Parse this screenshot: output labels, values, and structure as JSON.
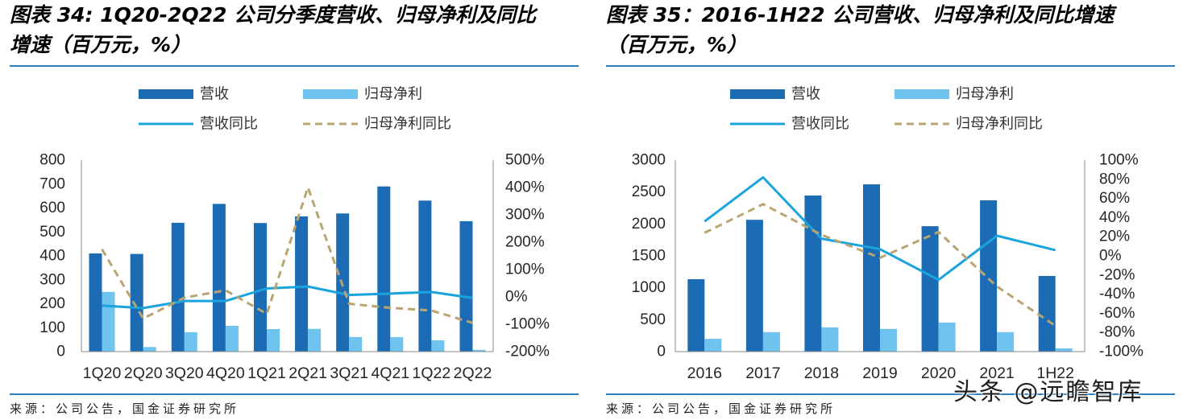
{
  "chart_data": [
    {
      "type": "bar",
      "title_lines": [
        "图表 34: 1Q20-2Q22 公司分季度营收、归母净利及同比",
        "增速（百万元，%）"
      ],
      "categories": [
        "1Q20",
        "2Q20",
        "3Q20",
        "4Q20",
        "1Q21",
        "2Q21",
        "3Q21",
        "4Q21",
        "1Q22",
        "2Q22"
      ],
      "series": [
        {
          "name": "营收",
          "type": "bar",
          "axis": "left",
          "color": "#1b6cb5",
          "values": [
            410,
            408,
            538,
            617,
            537,
            565,
            577,
            690,
            631,
            545
          ]
        },
        {
          "name": "归母净利",
          "type": "bar",
          "axis": "left",
          "color": "#6fc3ef",
          "values": [
            249,
            19,
            81,
            108,
            94,
            95,
            61,
            60,
            47,
            7
          ]
        },
        {
          "name": "营收同比",
          "type": "line",
          "axis": "right",
          "color": "#1aa3dd",
          "dashed": false,
          "values": [
            -32,
            -41,
            -15,
            -15,
            31,
            38,
            7,
            12,
            18,
            -4
          ]
        },
        {
          "name": "归母净利同比",
          "type": "line",
          "axis": "right",
          "color": "#b9a472",
          "dashed": true,
          "values": [
            174,
            -79,
            -3,
            24,
            -62,
            400,
            -25,
            -40,
            -50,
            -95
          ]
        }
      ],
      "ylim_left": [
        0,
        800
      ],
      "ylim_right": [
        -200,
        500
      ],
      "y_left_ticks": [
        "0",
        "100",
        "200",
        "300",
        "400",
        "500",
        "600",
        "700",
        "800"
      ],
      "y_right_ticks": [
        "-200%",
        "-100%",
        "0%",
        "100%",
        "200%",
        "300%",
        "400%",
        "500%"
      ],
      "grid": false,
      "legend_position": "top",
      "source": "来源：公司公告，国金证券研究所"
    },
    {
      "type": "bar",
      "title_lines": [
        "图表 35：2016-1H22 公司营收、归母净利及同比增速",
        "（百万元，%）"
      ],
      "categories": [
        "2016",
        "2017",
        "2018",
        "2019",
        "2020",
        "2021",
        "1H22"
      ],
      "series": [
        {
          "name": "营收",
          "type": "bar",
          "axis": "left",
          "color": "#1b6cb5",
          "values": [
            1135,
            2065,
            2445,
            2620,
            1965,
            2370,
            1185
          ]
        },
        {
          "name": "归母净利",
          "type": "bar",
          "axis": "left",
          "color": "#6fc3ef",
          "values": [
            200,
            305,
            380,
            355,
            455,
            305,
            50
          ]
        },
        {
          "name": "营收同比",
          "type": "line",
          "axis": "right",
          "color": "#1aa3dd",
          "dashed": false,
          "values": [
            36,
            82,
            18,
            7,
            -25,
            21,
            6
          ]
        },
        {
          "name": "归母净利同比",
          "type": "line",
          "axis": "right",
          "color": "#b9a472",
          "dashed": true,
          "values": [
            24,
            54,
            22,
            -2,
            25,
            -32,
            -73
          ]
        }
      ],
      "ylim_left": [
        0,
        3000
      ],
      "ylim_right": [
        -100,
        100
      ],
      "y_left_ticks": [
        "0",
        "500",
        "1000",
        "1500",
        "2000",
        "2500",
        "3000"
      ],
      "y_right_ticks": [
        "-100%",
        "-80%",
        "-60%",
        "-40%",
        "-20%",
        "0%",
        "20%",
        "40%",
        "60%",
        "80%",
        "100%"
      ],
      "grid": false,
      "legend_position": "top",
      "source": "来源：公司公告，国金证券研究所"
    }
  ],
  "watermark": "头条 @远瞻智库",
  "colors": {
    "rule": "#2a7ec2"
  }
}
